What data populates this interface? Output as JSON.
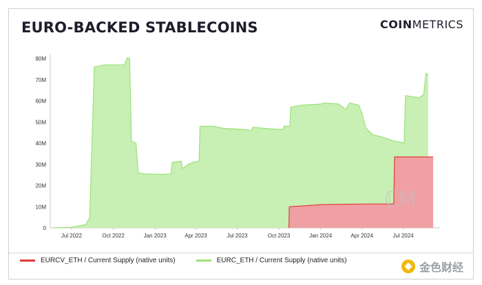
{
  "header": {
    "title": "EURO-BACKED STABLECOINS",
    "brand_bold": "COIN",
    "brand_light": "METRICS"
  },
  "watermark": {
    "text": "金色财经"
  },
  "colors": {
    "eurc": "#9be37a",
    "eurc_fill": "#c8efb4",
    "eurcv": "#e03838",
    "eurcv_fill": "#f0a0a3"
  },
  "chart_data": {
    "type": "area",
    "title": "EURO-BACKED STABLECOINS",
    "xlabel": "",
    "ylabel": "",
    "ylim": [
      0,
      80
    ],
    "yticks": [
      0,
      10,
      20,
      30,
      40,
      50,
      60,
      70,
      80
    ],
    "ytick_labels": [
      "0",
      "10M",
      "20M",
      "30M",
      "40M",
      "50M",
      "60M",
      "70M",
      "80M"
    ],
    "xlim": [
      "2022-05-15",
      "2024-09-20"
    ],
    "xticks": [
      "2022-07-01",
      "2022-10-01",
      "2023-01-01",
      "2023-04-01",
      "2023-07-01",
      "2023-10-01",
      "2024-01-01",
      "2024-04-01",
      "2024-07-01"
    ],
    "xtick_labels": [
      "Jul 2022",
      "Oct 2022",
      "Jan 2023",
      "Apr 2023",
      "Jul 2023",
      "Oct 2023",
      "Jan 2024",
      "Apr 2024",
      "Jul 2024"
    ],
    "legend": "bottom-left",
    "grid": false,
    "series": [
      {
        "name": "EURCV_ETH / Current Supply (native units)",
        "color": "#e03838",
        "points": [
          [
            "2023-10-23",
            0
          ],
          [
            "2023-10-24",
            10
          ],
          [
            "2023-12-01",
            10.5
          ],
          [
            "2024-01-01",
            11
          ],
          [
            "2024-03-01",
            11.2
          ],
          [
            "2024-05-01",
            11.3
          ],
          [
            "2024-06-10",
            11.3
          ],
          [
            "2024-06-12",
            33.5
          ],
          [
            "2024-09-05",
            33.5
          ]
        ]
      },
      {
        "name": "EURC_ETH / Current Supply (native units)",
        "color": "#9be37a",
        "points": [
          [
            "2022-05-20",
            0
          ],
          [
            "2022-07-01",
            0.3
          ],
          [
            "2022-08-01",
            1.5
          ],
          [
            "2022-08-10",
            5
          ],
          [
            "2022-08-20",
            76
          ],
          [
            "2022-09-10",
            77
          ],
          [
            "2022-10-10",
            77
          ],
          [
            "2022-10-25",
            77
          ],
          [
            "2022-11-01",
            80.5
          ],
          [
            "2022-11-06",
            80
          ],
          [
            "2022-11-10",
            41
          ],
          [
            "2022-11-20",
            40
          ],
          [
            "2022-11-25",
            26
          ],
          [
            "2022-12-10",
            25.5
          ],
          [
            "2023-01-15",
            25.3
          ],
          [
            "2023-02-05",
            25.5
          ],
          [
            "2023-02-08",
            31
          ],
          [
            "2023-02-28",
            31.5
          ],
          [
            "2023-03-02",
            28
          ],
          [
            "2023-03-15",
            30
          ],
          [
            "2023-03-25",
            31
          ],
          [
            "2023-04-08",
            31.5
          ],
          [
            "2023-04-10",
            48
          ],
          [
            "2023-05-10",
            48
          ],
          [
            "2023-06-01",
            47
          ],
          [
            "2023-07-15",
            46.5
          ],
          [
            "2023-08-01",
            46
          ],
          [
            "2023-08-05",
            47.5
          ],
          [
            "2023-09-01",
            47
          ],
          [
            "2023-10-01",
            46.5
          ],
          [
            "2023-10-10",
            46.5
          ],
          [
            "2023-10-12",
            48
          ],
          [
            "2023-10-25",
            48
          ],
          [
            "2023-10-27",
            57
          ],
          [
            "2023-11-20",
            58
          ],
          [
            "2024-01-01",
            58.5
          ],
          [
            "2024-01-10",
            59
          ],
          [
            "2024-02-10",
            58.5
          ],
          [
            "2024-02-25",
            56
          ],
          [
            "2024-03-05",
            59
          ],
          [
            "2024-03-25",
            58
          ],
          [
            "2024-04-01",
            54
          ],
          [
            "2024-04-10",
            47
          ],
          [
            "2024-04-25",
            44
          ],
          [
            "2024-05-15",
            43
          ],
          [
            "2024-06-10",
            41
          ],
          [
            "2024-06-25",
            40.5
          ],
          [
            "2024-07-03",
            40
          ],
          [
            "2024-07-06",
            62.5
          ],
          [
            "2024-07-20",
            62
          ],
          [
            "2024-08-05",
            61.5
          ],
          [
            "2024-08-15",
            63
          ],
          [
            "2024-08-20",
            73
          ],
          [
            "2024-08-25",
            72
          ]
        ]
      }
    ]
  }
}
